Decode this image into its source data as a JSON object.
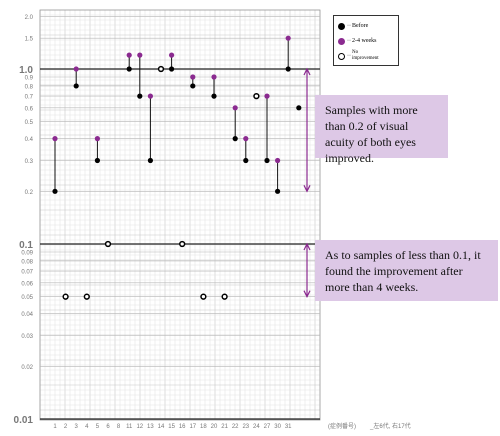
{
  "chart_data": {
    "type": "scatter",
    "title": "",
    "xlabel": "(症例番号)",
    "ylabel": "",
    "y_scale": "log",
    "ylim": [
      0.01,
      2.2
    ],
    "x_ticks": [
      "1",
      "2",
      "3",
      "4",
      "5",
      "6",
      "8",
      "11",
      "12",
      "13",
      "14",
      "15",
      "16",
      "17",
      "18",
      "20",
      "21",
      "22",
      "23",
      "24",
      "27",
      "30",
      "31"
    ],
    "y_tick_labels": [
      "2.0",
      "1.5",
      "1.0",
      "0.9",
      "0.8",
      "0.7",
      "0.6",
      "0.5",
      "0.4",
      "0.3",
      "0.2",
      "0.1",
      "0.09",
      "0.08",
      "0.07",
      "0.06",
      "0.05",
      "0.04",
      "0.03",
      "0.02",
      "0.01"
    ],
    "y_tick_values": [
      2.0,
      1.5,
      1.0,
      0.9,
      0.8,
      0.7,
      0.6,
      0.5,
      0.4,
      0.3,
      0.2,
      0.1,
      0.09,
      0.08,
      0.07,
      0.06,
      0.05,
      0.04,
      0.03,
      0.02,
      0.01
    ],
    "y_major_ticks": [
      1.0,
      0.1,
      0.01
    ],
    "legend": {
      "placement": "top-right",
      "entries": [
        {
          "key": "before",
          "label": "Before",
          "color": "#000000",
          "style": "filled"
        },
        {
          "key": "weeks",
          "label": "2-4 weeks",
          "color": "#8b2a90",
          "style": "filled"
        },
        {
          "key": "noimp",
          "label": "No improvement",
          "color": "#000000",
          "style": "open"
        }
      ]
    },
    "pairs": [
      {
        "x": 1,
        "before": 0.2,
        "after": 0.4
      },
      {
        "x": 3,
        "before": 0.8,
        "after": 1.0
      },
      {
        "x": 5,
        "before": 0.3,
        "after": 0.4
      },
      {
        "x": 8,
        "before": 1.0,
        "after": 1.2
      },
      {
        "x": 9,
        "before": 0.7,
        "after": 1.2
      },
      {
        "x": 10,
        "before": 0.3,
        "after": 0.7
      },
      {
        "x": 12,
        "before": 1.0,
        "after": 1.2
      },
      {
        "x": 14,
        "before": 0.8,
        "after": 0.9
      },
      {
        "x": 16,
        "before": 0.7,
        "after": 0.9
      },
      {
        "x": 18,
        "before": 0.4,
        "after": 0.6
      },
      {
        "x": 19,
        "before": 0.3,
        "after": 0.4
      },
      {
        "x": 21,
        "before": 0.3,
        "after": 0.7
      },
      {
        "x": 22,
        "before": 0.2,
        "after": 0.3
      },
      {
        "x": 23,
        "before": 1.0,
        "after": 1.5
      },
      {
        "x": 24,
        "before": 0.6,
        "after": null
      }
    ],
    "no_improvement": [
      {
        "x": 2,
        "y": 0.05
      },
      {
        "x": 4,
        "y": 0.05
      },
      {
        "x": 6,
        "y": 0.1
      },
      {
        "x": 11,
        "y": 1.0
      },
      {
        "x": 13,
        "y": 0.1
      },
      {
        "x": 15,
        "y": 0.05
      },
      {
        "x": 17,
        "y": 0.05
      },
      {
        "x": 20,
        "y": 0.7
      }
    ],
    "annotations": [
      {
        "text": "Samples with more than 0.2 of visual acuity of both eyes improved.",
        "range": [
          0.2,
          1.0
        ]
      },
      {
        "text": "As to samples of less than 0.1, it found the improvement  after more than 4 weeks.",
        "range": [
          0.05,
          0.1
        ]
      }
    ],
    "footer_right": "_左6代, 右17代"
  }
}
